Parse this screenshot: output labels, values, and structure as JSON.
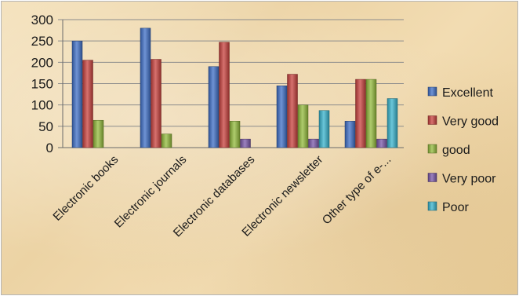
{
  "chart_data": {
    "type": "bar",
    "categories": [
      "Electronic books",
      "Electronic journals",
      "Electronic databases",
      "Electronic newsletter",
      "Other type of e-..."
    ],
    "series": [
      {
        "name": "Excellent",
        "color": "#3f6fc6",
        "values": [
          250,
          280,
          190,
          145,
          62
        ]
      },
      {
        "name": "Very good",
        "color": "#c8413e",
        "values": [
          205,
          207,
          247,
          172,
          160
        ]
      },
      {
        "name": "good",
        "color": "#93bb3c",
        "values": [
          64,
          32,
          62,
          100,
          160
        ]
      },
      {
        "name": "Very poor",
        "color": "#7a57a8",
        "values": [
          0,
          0,
          20,
          20,
          20
        ]
      },
      {
        "name": "Poor",
        "color": "#38b3cc",
        "values": [
          0,
          0,
          0,
          87,
          115
        ]
      }
    ],
    "ylim": [
      0,
      300
    ],
    "yticks": [
      0,
      50,
      100,
      150,
      200,
      250,
      300
    ],
    "grid": true,
    "legend_position": "right"
  }
}
